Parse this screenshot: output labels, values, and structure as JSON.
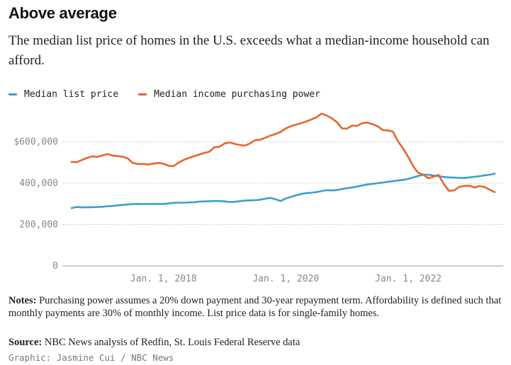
{
  "header": {
    "title": "Above average",
    "subtitle": "The median list price of homes in the U.S. exceeds what a median-income household can afford."
  },
  "footer": {
    "notes_label": "Notes:",
    "notes_text": " Purchasing power assumes a 20% down payment and 30-year repayment term. Affordability is defined such that monthly payments are 30% of monthly income. List price data is for single-family homes.",
    "source_label": "Source:",
    "source_text": " NBC News analysis of Redfin, St. Louis Federal Reserve data",
    "credit": "Graphic: Jasmine Cui / NBC News"
  },
  "chart_data": {
    "type": "line",
    "title": "Above average",
    "xlabel": "",
    "ylabel": "",
    "ylim": [
      0,
      800000
    ],
    "xlim": [
      "2016-07-01",
      "2023-06-01"
    ],
    "grid": true,
    "legend_position": "top-left",
    "y_ticks": [
      {
        "value": 0,
        "label": "0"
      },
      {
        "value": 200000,
        "label": "200,000"
      },
      {
        "value": 400000,
        "label": "400,000"
      },
      {
        "value": 600000,
        "label": "$600,000"
      }
    ],
    "x_ticks": [
      {
        "value": "2018-01-01",
        "label": "Jan. 1, 2018"
      },
      {
        "value": "2020-01-01",
        "label": "Jan. 1, 2020"
      },
      {
        "value": "2022-01-01",
        "label": "Jan. 1, 2022"
      }
    ],
    "series": [
      {
        "name": "Median list price",
        "color": "#3a9fd0",
        "points": [
          [
            "2016-07-01",
            280000
          ],
          [
            "2016-08-01",
            285000
          ],
          [
            "2016-09-01",
            283000
          ],
          [
            "2016-10-01",
            284000
          ],
          [
            "2016-11-01",
            284000
          ],
          [
            "2016-12-01",
            285000
          ],
          [
            "2017-01-01",
            286000
          ],
          [
            "2017-02-01",
            289000
          ],
          [
            "2017-03-01",
            290000
          ],
          [
            "2017-04-01",
            293000
          ],
          [
            "2017-05-01",
            295000
          ],
          [
            "2017-06-01",
            297000
          ],
          [
            "2017-07-01",
            299000
          ],
          [
            "2017-08-01",
            300000
          ],
          [
            "2017-09-01",
            299000
          ],
          [
            "2017-10-01",
            300000
          ],
          [
            "2017-11-01",
            300000
          ],
          [
            "2017-12-01",
            300000
          ],
          [
            "2018-01-01",
            300000
          ],
          [
            "2018-02-01",
            302000
          ],
          [
            "2018-03-01",
            305000
          ],
          [
            "2018-04-01",
            306000
          ],
          [
            "2018-05-01",
            306000
          ],
          [
            "2018-06-01",
            307000
          ],
          [
            "2018-07-01",
            308000
          ],
          [
            "2018-08-01",
            311000
          ],
          [
            "2018-09-01",
            312000
          ],
          [
            "2018-10-01",
            313000
          ],
          [
            "2018-11-01",
            314000
          ],
          [
            "2018-12-01",
            314000
          ],
          [
            "2019-01-01",
            312000
          ],
          [
            "2019-02-01",
            309000
          ],
          [
            "2019-03-01",
            310000
          ],
          [
            "2019-04-01",
            313000
          ],
          [
            "2019-05-01",
            316000
          ],
          [
            "2019-06-01",
            317000
          ],
          [
            "2019-07-01",
            318000
          ],
          [
            "2019-08-01",
            320000
          ],
          [
            "2019-09-01",
            325000
          ],
          [
            "2019-10-01",
            329000
          ],
          [
            "2019-11-01",
            322000
          ],
          [
            "2019-12-01",
            314000
          ],
          [
            "2020-01-01",
            326000
          ],
          [
            "2020-02-01",
            334000
          ],
          [
            "2020-03-01",
            341000
          ],
          [
            "2020-04-01",
            348000
          ],
          [
            "2020-05-01",
            352000
          ],
          [
            "2020-06-01",
            354000
          ],
          [
            "2020-07-01",
            357000
          ],
          [
            "2020-08-01",
            362000
          ],
          [
            "2020-09-01",
            366000
          ],
          [
            "2020-10-01",
            365000
          ],
          [
            "2020-11-01",
            367000
          ],
          [
            "2020-12-01",
            372000
          ],
          [
            "2021-01-01",
            376000
          ],
          [
            "2021-02-01",
            379000
          ],
          [
            "2021-03-01",
            384000
          ],
          [
            "2021-04-01",
            389000
          ],
          [
            "2021-05-01",
            394000
          ],
          [
            "2021-06-01",
            397000
          ],
          [
            "2021-07-01",
            400000
          ],
          [
            "2021-08-01",
            403000
          ],
          [
            "2021-09-01",
            407000
          ],
          [
            "2021-10-01",
            410000
          ],
          [
            "2021-11-01",
            413000
          ],
          [
            "2021-12-01",
            416000
          ],
          [
            "2022-01-01",
            421000
          ],
          [
            "2022-02-01",
            428000
          ],
          [
            "2022-03-01",
            435000
          ],
          [
            "2022-04-01",
            441000
          ],
          [
            "2022-05-01",
            441000
          ],
          [
            "2022-06-01",
            437000
          ],
          [
            "2022-07-01",
            434000
          ],
          [
            "2022-08-01",
            430000
          ],
          [
            "2022-09-01",
            428000
          ],
          [
            "2022-10-01",
            427000
          ],
          [
            "2022-11-01",
            426000
          ],
          [
            "2022-12-01",
            425000
          ],
          [
            "2023-01-01",
            428000
          ],
          [
            "2023-02-01",
            431000
          ],
          [
            "2023-03-01",
            434000
          ],
          [
            "2023-04-01",
            438000
          ],
          [
            "2023-05-01",
            441000
          ],
          [
            "2023-06-01",
            446000
          ]
        ]
      },
      {
        "name": "Median income purchasing power",
        "color": "#e8652a",
        "points": [
          [
            "2016-07-01",
            503000
          ],
          [
            "2016-08-01",
            502000
          ],
          [
            "2016-09-01",
            512000
          ],
          [
            "2016-10-01",
            522000
          ],
          [
            "2016-11-01",
            530000
          ],
          [
            "2016-12-01",
            527000
          ],
          [
            "2017-01-01",
            534000
          ],
          [
            "2017-02-01",
            541000
          ],
          [
            "2017-03-01",
            534000
          ],
          [
            "2017-04-01",
            531000
          ],
          [
            "2017-05-01",
            528000
          ],
          [
            "2017-06-01",
            520000
          ],
          [
            "2017-07-01",
            498000
          ],
          [
            "2017-08-01",
            493000
          ],
          [
            "2017-09-01",
            493000
          ],
          [
            "2017-10-01",
            490000
          ],
          [
            "2017-11-01",
            495000
          ],
          [
            "2017-12-01",
            498000
          ],
          [
            "2018-01-01",
            494000
          ],
          [
            "2018-02-01",
            484000
          ],
          [
            "2018-03-01",
            482000
          ],
          [
            "2018-04-01",
            500000
          ],
          [
            "2018-05-01",
            512000
          ],
          [
            "2018-06-01",
            522000
          ],
          [
            "2018-07-01",
            530000
          ],
          [
            "2018-08-01",
            538000
          ],
          [
            "2018-09-01",
            546000
          ],
          [
            "2018-10-01",
            552000
          ],
          [
            "2018-11-01",
            574000
          ],
          [
            "2018-12-01",
            576000
          ],
          [
            "2019-01-01",
            592000
          ],
          [
            "2019-02-01",
            597000
          ],
          [
            "2019-03-01",
            590000
          ],
          [
            "2019-04-01",
            585000
          ],
          [
            "2019-05-01",
            582000
          ],
          [
            "2019-06-01",
            592000
          ],
          [
            "2019-07-01",
            608000
          ],
          [
            "2019-08-01",
            610000
          ],
          [
            "2019-09-01",
            620000
          ],
          [
            "2019-10-01",
            630000
          ],
          [
            "2019-11-01",
            638000
          ],
          [
            "2019-12-01",
            648000
          ],
          [
            "2020-01-01",
            665000
          ],
          [
            "2020-02-01",
            676000
          ],
          [
            "2020-03-01",
            683000
          ],
          [
            "2020-04-01",
            690000
          ],
          [
            "2020-05-01",
            698000
          ],
          [
            "2020-06-01",
            708000
          ],
          [
            "2020-07-01",
            718000
          ],
          [
            "2020-08-01",
            736000
          ],
          [
            "2020-09-01",
            727000
          ],
          [
            "2020-10-01",
            714000
          ],
          [
            "2020-11-01",
            695000
          ],
          [
            "2020-12-01",
            665000
          ],
          [
            "2021-01-01",
            664000
          ],
          [
            "2021-02-01",
            679000
          ],
          [
            "2021-03-01",
            677000
          ],
          [
            "2021-04-01",
            690000
          ],
          [
            "2021-05-01",
            693000
          ],
          [
            "2021-06-01",
            685000
          ],
          [
            "2021-07-01",
            676000
          ],
          [
            "2021-08-01",
            657000
          ],
          [
            "2021-09-01",
            655000
          ],
          [
            "2021-10-01",
            650000
          ],
          [
            "2021-11-01",
            602000
          ],
          [
            "2021-12-01",
            568000
          ],
          [
            "2022-01-01",
            527000
          ],
          [
            "2022-02-01",
            480000
          ],
          [
            "2022-03-01",
            450000
          ],
          [
            "2022-04-01",
            441000
          ],
          [
            "2022-05-01",
            424000
          ],
          [
            "2022-06-01",
            431000
          ],
          [
            "2022-07-01",
            440000
          ],
          [
            "2022-08-01",
            396000
          ],
          [
            "2022-09-01",
            363000
          ],
          [
            "2022-10-01",
            365000
          ],
          [
            "2022-11-01",
            382000
          ],
          [
            "2022-12-01",
            387000
          ],
          [
            "2023-01-01",
            388000
          ],
          [
            "2023-02-01",
            379000
          ],
          [
            "2023-03-01",
            386000
          ],
          [
            "2023-04-01",
            382000
          ],
          [
            "2023-05-01",
            369000
          ],
          [
            "2023-06-01",
            357000
          ]
        ]
      }
    ]
  }
}
